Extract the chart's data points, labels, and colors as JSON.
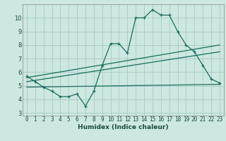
{
  "bg_color": "#cce8e0",
  "grid_color": "#aacfc8",
  "line_color": "#1a6b5e",
  "xlabel": "Humidex (Indice chaleur)",
  "xlim": [
    -0.5,
    23.5
  ],
  "ylim": [
    2.8,
    11.0
  ],
  "yticks": [
    3,
    4,
    5,
    6,
    7,
    8,
    9,
    10
  ],
  "xticks": [
    0,
    1,
    2,
    3,
    4,
    5,
    6,
    7,
    8,
    9,
    10,
    11,
    12,
    13,
    14,
    15,
    16,
    17,
    18,
    19,
    20,
    21,
    22,
    23
  ],
  "series1_x": [
    0,
    1,
    2,
    3,
    4,
    5,
    6,
    7,
    8,
    9,
    10,
    11,
    12,
    13,
    14,
    15,
    16,
    17,
    18,
    19,
    20,
    21,
    22,
    23
  ],
  "series1_y": [
    5.7,
    5.3,
    4.9,
    4.6,
    4.2,
    4.2,
    4.4,
    3.5,
    4.6,
    6.5,
    8.1,
    8.1,
    7.4,
    10.0,
    10.0,
    10.6,
    10.2,
    10.2,
    9.0,
    8.0,
    7.5,
    6.5,
    5.5,
    5.2
  ],
  "series2_x": [
    0,
    23
  ],
  "series2_y": [
    5.6,
    8.0
  ],
  "series3_x": [
    0,
    23
  ],
  "series3_y": [
    5.3,
    7.5
  ],
  "series4_x": [
    0,
    23
  ],
  "series4_y": [
    4.9,
    5.1
  ],
  "tick_fontsize": 5.5,
  "xlabel_fontsize": 6.5
}
